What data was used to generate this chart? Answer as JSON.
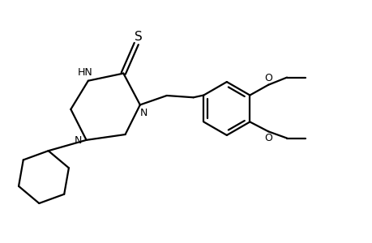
{
  "background_color": "#ffffff",
  "line_color": "#000000",
  "line_width": 1.6,
  "fig_width": 4.6,
  "fig_height": 3.0,
  "dpi": 100,
  "xlim": [
    0,
    10
  ],
  "ylim": [
    0,
    6.5
  ]
}
